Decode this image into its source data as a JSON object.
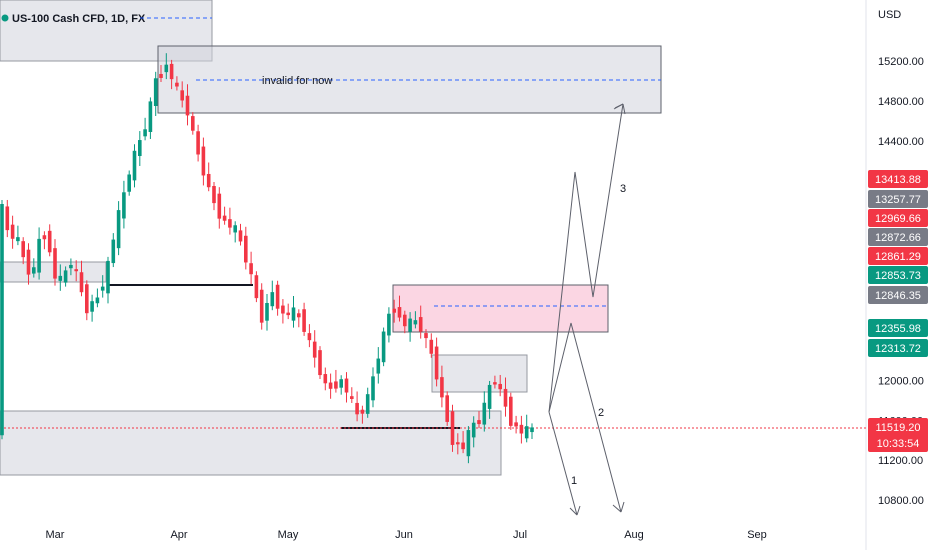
{
  "chart_data": {
    "type": "candlestick",
    "title": "US-100 Cash CFD, 1D, FX",
    "currency": "USD",
    "y_ticks": [
      "15200.00",
      "14800.00",
      "14400.00",
      "12000.00",
      "11600.00",
      "11200.00",
      "10800.00"
    ],
    "y_tick_values": [
      15200,
      14800,
      14400,
      12000,
      11600,
      11200,
      10800
    ],
    "x_ticks": [
      "Mar",
      "Apr",
      "May",
      "Jun",
      "Jul",
      "Aug",
      "Sep"
    ],
    "ylim": [
      10500,
      15700
    ],
    "current_price": "11519.20",
    "countdown": "10:33:54",
    "price_badges": [
      {
        "label": "13413.88",
        "color": "#f23645"
      },
      {
        "label": "13257.77",
        "color": "#787b86"
      },
      {
        "label": "12969.66",
        "color": "#f23645"
      },
      {
        "label": "12872.66",
        "color": "#787b86"
      },
      {
        "label": "12861.29",
        "color": "#f23645"
      },
      {
        "label": "12853.73",
        "color": "#089981"
      },
      {
        "label": "12846.35",
        "color": "#787b86"
      },
      {
        "label": "12355.98",
        "color": "#089981"
      },
      {
        "label": "12313.72",
        "color": "#089981"
      }
    ],
    "annotations": {
      "zone_label": "invalid for now",
      "path_labels": [
        "1",
        "2",
        "3"
      ]
    },
    "colors": {
      "up": "#089981",
      "down": "#f23645",
      "zone_gray": "#d1d4dc",
      "zone_pink": "#f8bbd0",
      "dash_blue": "#2962ff",
      "current_price_line": "#f23645"
    }
  }
}
